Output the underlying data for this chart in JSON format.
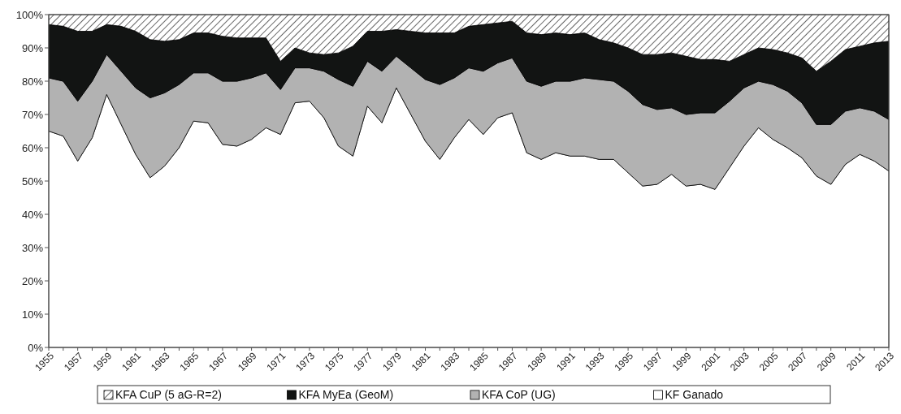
{
  "chart_data": {
    "type": "area",
    "stacked": true,
    "legend": "bottom",
    "categories": [
      "1955",
      null,
      "1957",
      null,
      "1959",
      null,
      "1961",
      null,
      "1963",
      null,
      "1965",
      null,
      "1967",
      null,
      "1969",
      null,
      "1971",
      null,
      "1973",
      null,
      "1975",
      null,
      "1977",
      null,
      "1979",
      null,
      "1981",
      null,
      "1983",
      null,
      "1985",
      null,
      "1987",
      null,
      "1989",
      null,
      "1991",
      null,
      "1993",
      null,
      "1995",
      null,
      "1997",
      null,
      "1999",
      null,
      "2001",
      null,
      "2003",
      null,
      "2005",
      null,
      "2007",
      null,
      "2009",
      null,
      "2011",
      null,
      "2013"
    ],
    "ylim": [
      0,
      100
    ],
    "yticks": [
      {
        "value": 0,
        "label": "0%"
      },
      {
        "value": 10,
        "label": "10%"
      },
      {
        "value": 20,
        "label": "20%"
      },
      {
        "value": 30,
        "label": "30%"
      },
      {
        "value": 40,
        "label": "40%"
      },
      {
        "value": 50,
        "label": "50%"
      },
      {
        "value": 60,
        "label": "60%"
      },
      {
        "value": 70,
        "label": "70%"
      },
      {
        "value": 80,
        "label": "80%"
      },
      {
        "value": 90,
        "label": "90%"
      },
      {
        "value": 100,
        "label": "100%"
      }
    ],
    "series": [
      {
        "name": "KF Ganado",
        "color": "#ffffff",
        "values": [
          65,
          63.5,
          56,
          63,
          76,
          67,
          58,
          51,
          54.5,
          60,
          68,
          67.5,
          61,
          60.5,
          62.5,
          66,
          64,
          73.5,
          74,
          69,
          60.5,
          57.5,
          72.5,
          67.5,
          78,
          70,
          62,
          56.5,
          63,
          68.5,
          64,
          69,
          70.5,
          58.5,
          56.5,
          58.5,
          57.5,
          57.5,
          56.5,
          56.5,
          52.5,
          48.5,
          49,
          52,
          48.5,
          49,
          47.5,
          54,
          60.5,
          66,
          62.5,
          60,
          57,
          51.5,
          49,
          55,
          58,
          56,
          53
        ]
      },
      {
        "name": "KFA CoP (UG)",
        "color": "#b2b2b2",
        "values": [
          16,
          16.5,
          18,
          17,
          12,
          16,
          20,
          24,
          22,
          19,
          14.5,
          15,
          19,
          19.5,
          18.5,
          16.5,
          13.5,
          10.5,
          10,
          14,
          20,
          21,
          13.5,
          15.5,
          9.5,
          14,
          18.5,
          22.5,
          18,
          15.5,
          19,
          16.5,
          16.5,
          21.5,
          22,
          21.5,
          22.5,
          23.5,
          24,
          23.5,
          24.5,
          24.5,
          22.5,
          20,
          21.5,
          21.5,
          23,
          20,
          17.5,
          14,
          16.5,
          17,
          16.5,
          15.5,
          18,
          16,
          14,
          15,
          15.5
        ]
      },
      {
        "name": "KFA MyEa (GeoM)",
        "color": "#121413",
        "values": [
          16,
          16.5,
          21,
          15,
          9,
          13.5,
          17,
          17.5,
          15.5,
          13.5,
          12,
          12,
          13.5,
          13,
          12,
          10.5,
          8.5,
          6,
          4.5,
          5,
          8,
          12,
          9,
          12,
          8,
          11,
          14,
          15.5,
          13.5,
          12.5,
          14,
          12,
          11,
          14.5,
          15.5,
          14.5,
          14,
          13.5,
          12,
          11.5,
          13,
          15,
          16.5,
          16.5,
          17.5,
          16,
          16,
          12,
          10,
          10,
          10.5,
          11.5,
          13.5,
          16,
          19,
          18.5,
          18.5,
          20.5,
          23.5
        ]
      },
      {
        "name": "KFA CuP (5 aG-R=2)",
        "color": "#000000",
        "values": [
          3,
          3.5,
          5,
          5,
          3,
          3.5,
          5,
          7.5,
          8,
          7.5,
          5.5,
          5.5,
          6.5,
          7,
          7,
          7,
          14,
          10,
          11.5,
          12,
          11.5,
          9.5,
          5,
          5,
          4.5,
          5,
          5.5,
          5.5,
          5.5,
          3.5,
          3,
          2.5,
          2,
          5.5,
          6,
          5.5,
          6,
          5.5,
          7.5,
          8.5,
          10,
          12,
          12,
          11.5,
          12.5,
          13.5,
          13.5,
          14,
          12,
          10,
          10.5,
          11.5,
          13,
          17,
          14,
          10.5,
          9.5,
          8.5,
          8
        ]
      }
    ]
  }
}
